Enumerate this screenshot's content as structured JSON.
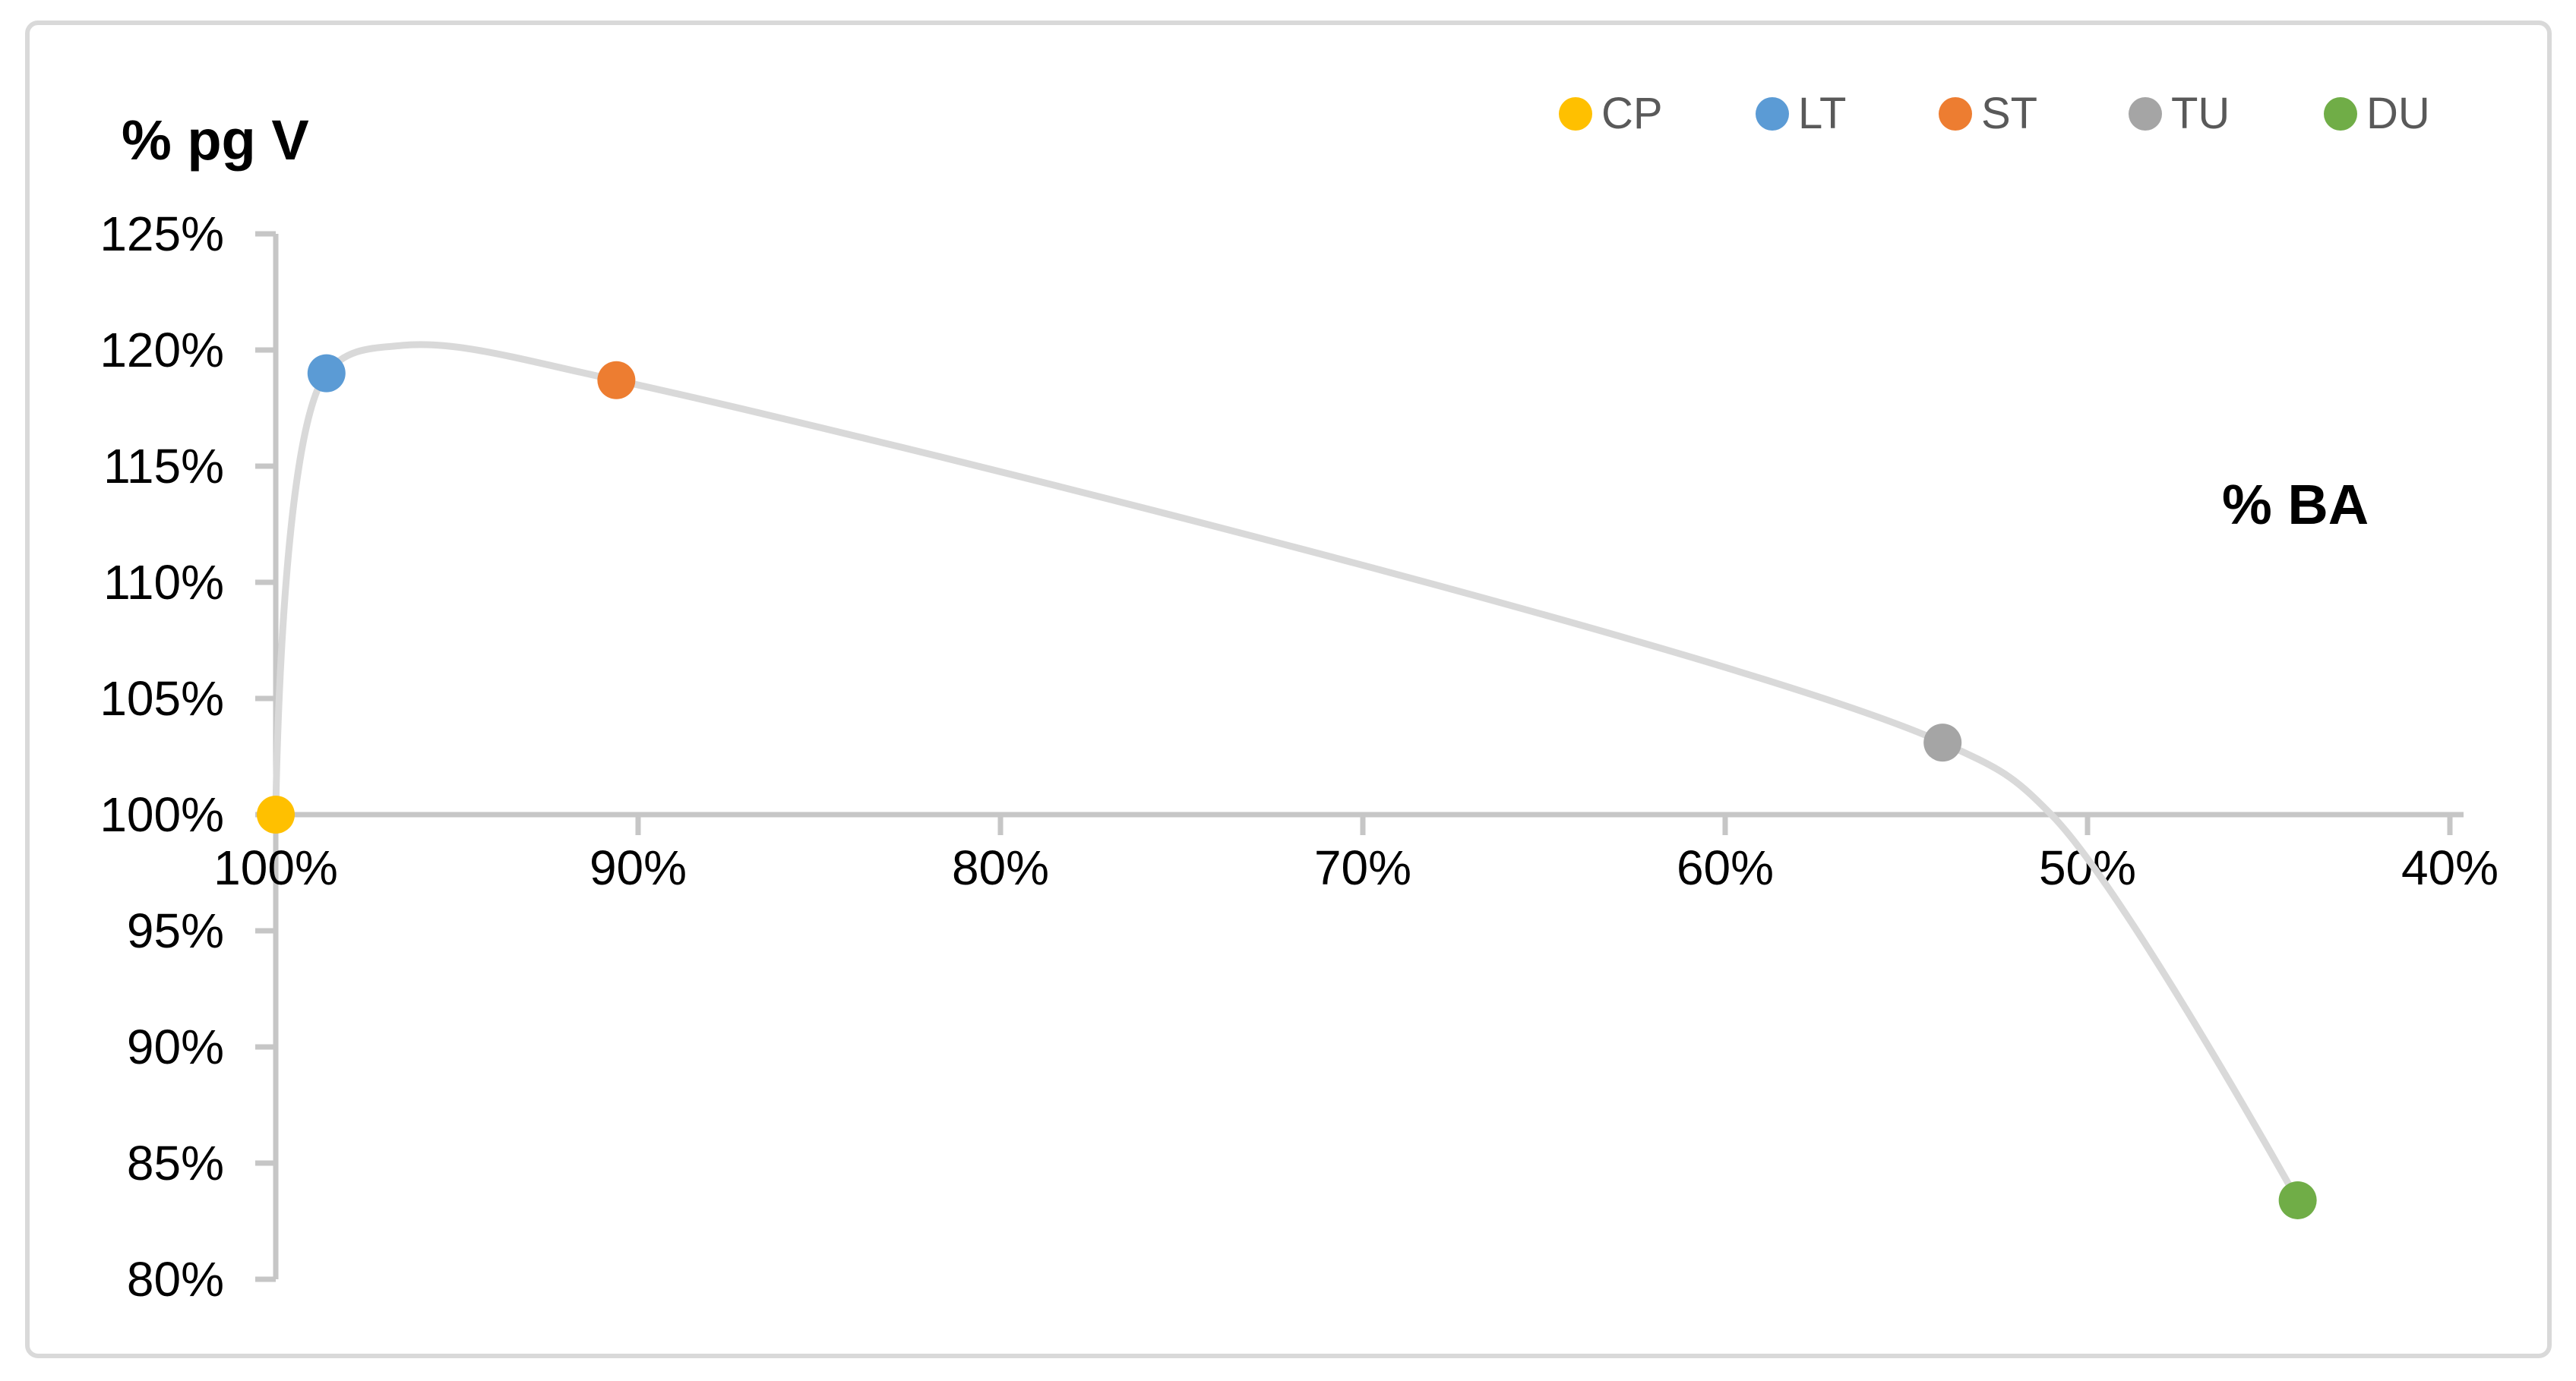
{
  "chart_data": {
    "type": "scatter",
    "title": "",
    "x_axis": {
      "label": "% BA",
      "direction": "reversed (100% at left, 40% at right)",
      "range": [
        100,
        40
      ],
      "ticks": [
        {
          "value": 100,
          "label": "100%"
        },
        {
          "value": 90,
          "label": "90%"
        },
        {
          "value": 80,
          "label": "80%"
        },
        {
          "value": 70,
          "label": "70%"
        },
        {
          "value": 60,
          "label": "60%"
        },
        {
          "value": 50,
          "label": "50%"
        },
        {
          "value": 40,
          "label": "40%"
        }
      ]
    },
    "y_axis": {
      "label": "% pg V",
      "range": [
        80,
        125
      ],
      "crosses_x_at": 100,
      "ticks": [
        {
          "value": 125,
          "label": "125%"
        },
        {
          "value": 120,
          "label": "120%"
        },
        {
          "value": 115,
          "label": "115%"
        },
        {
          "value": 110,
          "label": "110%"
        },
        {
          "value": 105,
          "label": "105%"
        },
        {
          "value": 100,
          "label": "100%"
        },
        {
          "value": 95,
          "label": "95%"
        },
        {
          "value": 90,
          "label": "90%"
        },
        {
          "value": 85,
          "label": "85%"
        },
        {
          "value": 80,
          "label": "80%"
        }
      ]
    },
    "series": [
      {
        "name": "CP",
        "color": "#FFC000",
        "x": 100.0,
        "y": 100.0
      },
      {
        "name": "LT",
        "color": "#5B9BD5",
        "x": 98.6,
        "y": 119.0
      },
      {
        "name": "ST",
        "color": "#ED7D31",
        "x": 90.6,
        "y": 118.7
      },
      {
        "name": "TU",
        "color": "#A5A5A5",
        "x": 54.0,
        "y": 103.1
      },
      {
        "name": "DU",
        "color": "#70AD47",
        "x": 44.2,
        "y": 83.4
      }
    ],
    "trend_curve": {
      "color": "#D9D9D9",
      "peak": {
        "x": 96.5,
        "y": 120.2
      },
      "crosses_100pct_at_x": 51.0,
      "through": [
        [
          100.0,
          100.0
        ],
        [
          98.6,
          119.0
        ],
        [
          96.5,
          120.2
        ],
        [
          90.6,
          118.7
        ],
        [
          54.0,
          103.1
        ],
        [
          51.0,
          100.0
        ],
        [
          44.2,
          83.4
        ]
      ]
    },
    "legend": {
      "position": "top-right",
      "items": [
        "CP",
        "LT",
        "ST",
        "TU",
        "DU"
      ]
    },
    "frame": {
      "border_color": "#D9D9D9",
      "background": "#FFFFFF"
    },
    "axis_color": "#C6C6C6",
    "tick_label_color": "#000000",
    "legend_label_color": "#595959"
  }
}
